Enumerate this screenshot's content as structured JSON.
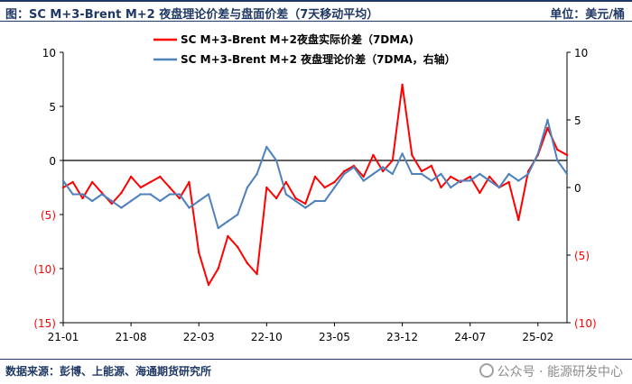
{
  "header": {
    "title": "图：SC M+3-Brent M+2 夜盘理论价差与盘面价差（7天移动平均）",
    "unit": "单位：美元/桶"
  },
  "footer": {
    "source": "数据来源：彭博、上能源、海通期货研究所",
    "watermark": "公众号 · 能源研发中心"
  },
  "colors": {
    "actual": "#ff0000",
    "theory": "#4f81bd",
    "title": "#1f3864",
    "right_axis_neg": "#ff0000"
  },
  "chart_data": {
    "type": "line",
    "x_ticks": [
      "21-01",
      "21-08",
      "22-03",
      "22-10",
      "23-05",
      "23-12",
      "24-07",
      "25-02"
    ],
    "x_range": [
      "2021-01",
      "2025-05"
    ],
    "left_axis": {
      "range": [
        -15,
        10
      ],
      "ticks": [
        10,
        5,
        0,
        -5,
        -10,
        -15
      ],
      "tick_labels": [
        "10",
        "5",
        "0",
        "(5)",
        "(10)",
        "(15)"
      ]
    },
    "right_axis": {
      "range": [
        -10,
        10
      ],
      "ticks": [
        10,
        5,
        0,
        -5,
        -10
      ],
      "tick_labels": [
        "10",
        "5",
        "0",
        "(5)",
        "(10)"
      ]
    },
    "series": [
      {
        "name": "SC M+3-Brent M+2夜盘实际价差（7DMA)",
        "axis": "left",
        "x": [
          "2021-01",
          "2021-02",
          "2021-03",
          "2021-04",
          "2021-05",
          "2021-06",
          "2021-07",
          "2021-08",
          "2021-09",
          "2021-10",
          "2021-11",
          "2021-12",
          "2022-01",
          "2022-02",
          "2022-03",
          "2022-04",
          "2022-05",
          "2022-06",
          "2022-07",
          "2022-08",
          "2022-09",
          "2022-10",
          "2022-11",
          "2022-12",
          "2023-01",
          "2023-02",
          "2023-03",
          "2023-04",
          "2023-05",
          "2023-06",
          "2023-07",
          "2023-08",
          "2023-09",
          "2023-10",
          "2023-11",
          "2023-12",
          "2024-01",
          "2024-02",
          "2024-03",
          "2024-04",
          "2024-05",
          "2024-06",
          "2024-07",
          "2024-08",
          "2024-09",
          "2024-10",
          "2024-11",
          "2024-12",
          "2025-01",
          "2025-02",
          "2025-03",
          "2025-04",
          "2025-05"
        ],
        "values": [
          -2.5,
          -2.0,
          -3.5,
          -2.0,
          -3.0,
          -4.0,
          -3.0,
          -1.5,
          -2.5,
          -2.0,
          -1.5,
          -2.5,
          -3.5,
          -2.0,
          -8.5,
          -11.5,
          -10.0,
          -7.0,
          -8.0,
          -9.5,
          -10.5,
          -2.5,
          -3.5,
          -2.0,
          -3.5,
          -4.0,
          -1.5,
          -2.5,
          -2.0,
          -1.0,
          -0.5,
          -1.5,
          0.5,
          -1.0,
          0.0,
          7.0,
          0.5,
          -1.0,
          -0.5,
          -2.5,
          -1.5,
          -2.0,
          -1.5,
          -3.0,
          -1.5,
          -2.5,
          -2.0,
          -5.5,
          -1.0,
          0.5,
          3.0,
          1.0,
          0.5
        ]
      },
      {
        "name": "SC M+3-Brent M+2 夜盘理论价差（7DMA，右轴）",
        "axis": "right",
        "x": [
          "2021-01",
          "2021-02",
          "2021-03",
          "2021-04",
          "2021-05",
          "2021-06",
          "2021-07",
          "2021-08",
          "2021-09",
          "2021-10",
          "2021-11",
          "2021-12",
          "2022-01",
          "2022-02",
          "2022-03",
          "2022-04",
          "2022-05",
          "2022-06",
          "2022-07",
          "2022-08",
          "2022-09",
          "2022-10",
          "2022-11",
          "2022-12",
          "2023-01",
          "2023-02",
          "2023-03",
          "2023-04",
          "2023-05",
          "2023-06",
          "2023-07",
          "2023-08",
          "2023-09",
          "2023-10",
          "2023-11",
          "2023-12",
          "2024-01",
          "2024-02",
          "2024-03",
          "2024-04",
          "2024-05",
          "2024-06",
          "2024-07",
          "2024-08",
          "2024-09",
          "2024-10",
          "2024-11",
          "2024-12",
          "2025-01",
          "2025-02",
          "2025-03",
          "2025-04",
          "2025-05"
        ],
        "values": [
          0.5,
          -0.5,
          -0.5,
          -1.0,
          -0.5,
          -1.0,
          -1.5,
          -1.0,
          -0.5,
          -0.5,
          -1.0,
          -0.5,
          -0.5,
          -1.5,
          -1.0,
          -0.5,
          -3.0,
          -2.5,
          -2.0,
          0.0,
          1.0,
          3.0,
          2.0,
          -0.5,
          -1.0,
          -1.5,
          -1.0,
          -1.0,
          0.0,
          1.0,
          1.5,
          0.5,
          1.0,
          1.5,
          1.0,
          2.5,
          1.0,
          1.0,
          0.5,
          1.0,
          0.0,
          0.5,
          0.5,
          1.0,
          0.5,
          0.0,
          1.0,
          0.5,
          1.0,
          2.5,
          5.0,
          2.0,
          1.0
        ]
      }
    ]
  }
}
